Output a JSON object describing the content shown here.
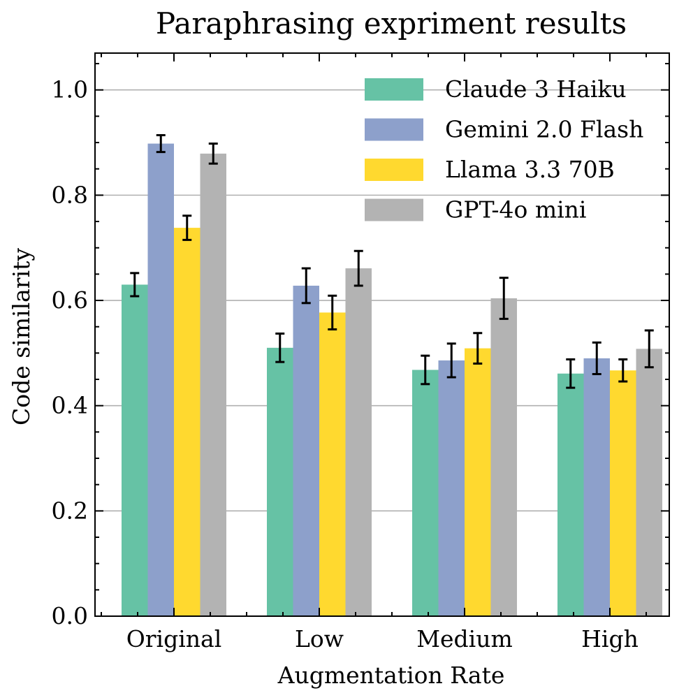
{
  "chart_data": {
    "type": "bar",
    "title": "Paraphrasing expriment results",
    "xlabel": "Augmentation Rate",
    "ylabel": "Code similarity",
    "categories": [
      "Original",
      "Low",
      "Medium",
      "High"
    ],
    "ylim": [
      0,
      1.07
    ],
    "yticks": [
      0.0,
      0.2,
      0.4,
      0.6,
      0.8,
      1.0
    ],
    "ytick_labels": [
      "0.0",
      "0.2",
      "0.4",
      "0.6",
      "0.8",
      "1.0"
    ],
    "grid": "horizontal",
    "legend_position": "top-right",
    "series": [
      {
        "name": "Claude 3 Haiku",
        "color": "#66c2a5",
        "values": [
          0.63,
          0.51,
          0.468,
          0.461
        ],
        "errors": [
          0.022,
          0.027,
          0.027,
          0.027
        ]
      },
      {
        "name": "Gemini 2.0 Flash",
        "color": "#8da0cb",
        "values": [
          0.898,
          0.628,
          0.486,
          0.49
        ],
        "errors": [
          0.016,
          0.033,
          0.032,
          0.03
        ]
      },
      {
        "name": "Llama 3.3 70B",
        "color": "#ffd92f",
        "values": [
          0.738,
          0.577,
          0.509,
          0.467
        ],
        "errors": [
          0.023,
          0.032,
          0.029,
          0.021
        ]
      },
      {
        "name": "GPT-4o mini",
        "color": "#b3b3b3",
        "values": [
          0.879,
          0.661,
          0.604,
          0.508
        ],
        "errors": [
          0.019,
          0.033,
          0.039,
          0.035
        ]
      }
    ]
  }
}
